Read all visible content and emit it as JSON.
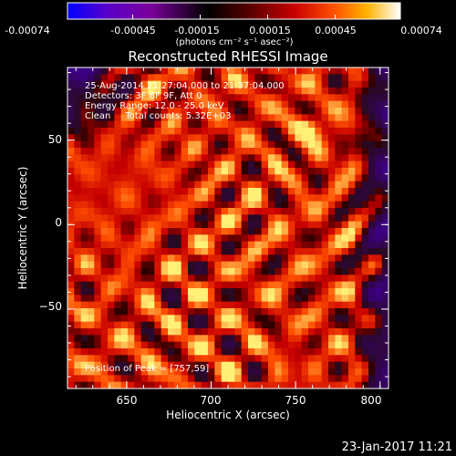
{
  "colorbar": {
    "tick_labels": [
      "-0.00074",
      "-0.00045",
      "-0.00015",
      "0.00015",
      "0.00045",
      "0.00074"
    ],
    "tick_values": [
      -0.00074,
      -0.00045,
      -0.00015,
      0.00015,
      0.00045,
      0.00074
    ],
    "range": [
      -0.00074,
      0.00074
    ],
    "unit_label": "(photons cm⁻² s⁻¹ asec⁻²)",
    "colors": [
      "#0000ff",
      "#5a00c8",
      "#7a009a",
      "#000000",
      "#5a0000",
      "#c80000",
      "#ff5000",
      "#ffb400",
      "#ffffff"
    ]
  },
  "annotations": {
    "date_line": "25-Aug-2014 21:27:04.000 to 21:37:04.000",
    "detectors_line": "Detectors: 3F 6F 9F, Att 0",
    "energy_line": "Energy Range: 12.0 - 25.0 keV",
    "clean_line": "Clean     Total counts: 5.32E+03",
    "peak_line": "Position of Peak = [757,59]"
  },
  "timestamp": "23-Jan-2017 11:21",
  "chart_data": {
    "type": "heatmap",
    "title": "Reconstructed RHESSI Image",
    "xlabel": "Heliocentric X (arcsec)",
    "ylabel": "Heliocentric Y (arcsec)",
    "xlim": [
      615,
      805
    ],
    "ylim": [
      -97,
      93
    ],
    "x_ticks": [
      650,
      700,
      750,
      800
    ],
    "x_tick_labels": [
      "650",
      "700",
      "750",
      "800"
    ],
    "y_ticks": [
      -50,
      0,
      50
    ],
    "y_tick_labels": [
      "−50",
      "0",
      "50"
    ],
    "peak": [
      757,
      59
    ],
    "grid_size": 48,
    "grid": false
  }
}
